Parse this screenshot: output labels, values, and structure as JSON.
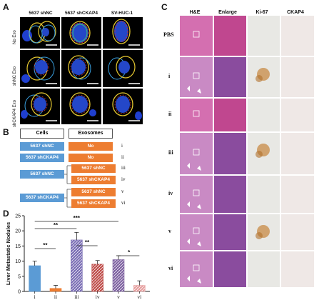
{
  "panel_labels": {
    "a": "A",
    "b": "B",
    "c": "C",
    "d": "D"
  },
  "panel_a": {
    "columns": [
      "5637 shNC",
      "5637 shCKAP4",
      "SV-HUC-1"
    ],
    "rows": [
      "No Exo",
      "shNC Exo",
      "shCKAP4 Exo"
    ]
  },
  "panel_b": {
    "header_cells": "Cells",
    "header_exosomes": "Exosomes",
    "rows": [
      {
        "cell": "5637 shNC",
        "exo": [
          "No"
        ],
        "group": [
          "i"
        ]
      },
      {
        "cell": "5637 shCKAP4",
        "exo": [
          "No"
        ],
        "group": [
          "ii"
        ]
      },
      {
        "cell": "5637 shNC",
        "exo": [
          "5637 shNC",
          "5637 shCKAP4"
        ],
        "group": [
          "iii",
          "iv"
        ]
      },
      {
        "cell": "5637 shCKAP4",
        "exo": [
          "5637 shNC",
          "5637 shCKAP4"
        ],
        "group": [
          "v",
          "vi"
        ]
      }
    ]
  },
  "panel_c": {
    "columns": [
      "H&E",
      "Enlarge",
      "Ki-67",
      "CKAP4"
    ],
    "rows": [
      "PBS",
      "i",
      "ii",
      "iii",
      "iv",
      "v",
      "vi"
    ]
  },
  "chart_data": {
    "type": "bar",
    "ylabel": "Liver Metastatic Nodules",
    "categories": [
      "i",
      "ii",
      "iii",
      "iv",
      "v",
      "vi"
    ],
    "values": [
      8.5,
      1.0,
      17.0,
      9.0,
      10.5,
      2.0
    ],
    "errors": [
      1.5,
      1.0,
      2.5,
      1.2,
      1.3,
      1.5
    ],
    "ylim": [
      0,
      25
    ],
    "yticks": [
      "0",
      "5",
      "10",
      "15",
      "20",
      "25"
    ],
    "colors": [
      "#5b9bd5",
      "#ed7d31",
      "#7b6fb5",
      "#c0504d",
      "#8064a2",
      "#e6a0a0"
    ],
    "significance": [
      {
        "pair": [
          "i",
          "ii"
        ],
        "label": "**"
      },
      {
        "pair": [
          "i",
          "iii"
        ],
        "label": "**"
      },
      {
        "pair": [
          "iii",
          "iv"
        ],
        "label": "**"
      },
      {
        "pair": [
          "i",
          "v"
        ],
        "label": "***"
      },
      {
        "pair": [
          "v",
          "vi"
        ],
        "label": "*"
      }
    ]
  }
}
